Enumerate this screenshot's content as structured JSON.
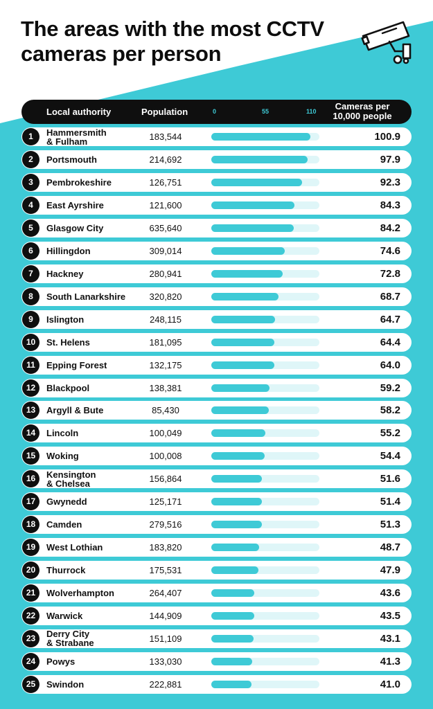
{
  "title": {
    "line1": "The areas with the most CCTV",
    "line2": "cameras per person"
  },
  "colors": {
    "accent": "#3ecad6",
    "track": "#dff6f8",
    "dark": "#0f0f0f"
  },
  "header": {
    "authority": "Local authority",
    "population": "Population",
    "metric_line1": "Cameras per",
    "metric_line2": "10,000 people",
    "ticks": [
      "0",
      "55",
      "110"
    ]
  },
  "chart_data": {
    "type": "bar",
    "xlim": [
      0,
      110
    ],
    "columns": [
      "Local authority",
      "Population",
      "Cameras per 10,000 people"
    ],
    "rows": [
      {
        "rank": "1",
        "name": [
          "Hammersmith",
          "& Fulham"
        ],
        "population": "183,544",
        "value": 100.9,
        "label": "100.9"
      },
      {
        "rank": "2",
        "name": [
          "Portsmouth"
        ],
        "population": "214,692",
        "value": 97.9,
        "label": "97.9"
      },
      {
        "rank": "3",
        "name": [
          "Pembrokeshire"
        ],
        "population": "126,751",
        "value": 92.3,
        "label": "92.3"
      },
      {
        "rank": "4",
        "name": [
          "East Ayrshire"
        ],
        "population": "121,600",
        "value": 84.3,
        "label": "84.3"
      },
      {
        "rank": "5",
        "name": [
          "Glasgow City"
        ],
        "population": "635,640",
        "value": 84.2,
        "label": "84.2"
      },
      {
        "rank": "6",
        "name": [
          "Hillingdon"
        ],
        "population": "309,014",
        "value": 74.6,
        "label": "74.6"
      },
      {
        "rank": "7",
        "name": [
          "Hackney"
        ],
        "population": "280,941",
        "value": 72.8,
        "label": "72.8"
      },
      {
        "rank": "8",
        "name": [
          "South Lanarkshire"
        ],
        "population": "320,820",
        "value": 68.7,
        "label": "68.7"
      },
      {
        "rank": "9",
        "name": [
          "Islington"
        ],
        "population": "248,115",
        "value": 64.7,
        "label": "64.7"
      },
      {
        "rank": "10",
        "name": [
          "St. Helens"
        ],
        "population": "181,095",
        "value": 64.4,
        "label": "64.4"
      },
      {
        "rank": "11",
        "name": [
          "Epping Forest"
        ],
        "population": "132,175",
        "value": 64.0,
        "label": "64.0"
      },
      {
        "rank": "12",
        "name": [
          "Blackpool"
        ],
        "population": "138,381",
        "value": 59.2,
        "label": "59.2"
      },
      {
        "rank": "13",
        "name": [
          "Argyll & Bute"
        ],
        "population": "85,430",
        "value": 58.2,
        "label": "58.2"
      },
      {
        "rank": "14",
        "name": [
          "Lincoln"
        ],
        "population": "100,049",
        "value": 55.2,
        "label": "55.2"
      },
      {
        "rank": "15",
        "name": [
          "Woking"
        ],
        "population": "100,008",
        "value": 54.4,
        "label": "54.4"
      },
      {
        "rank": "16",
        "name": [
          "Kensington",
          "& Chelsea"
        ],
        "population": "156,864",
        "value": 51.6,
        "label": "51.6"
      },
      {
        "rank": "17",
        "name": [
          "Gwynedd"
        ],
        "population": "125,171",
        "value": 51.4,
        "label": "51.4"
      },
      {
        "rank": "18",
        "name": [
          "Camden"
        ],
        "population": "279,516",
        "value": 51.3,
        "label": "51.3"
      },
      {
        "rank": "19",
        "name": [
          "West Lothian"
        ],
        "population": "183,820",
        "value": 48.7,
        "label": "48.7"
      },
      {
        "rank": "20",
        "name": [
          "Thurrock"
        ],
        "population": "175,531",
        "value": 47.9,
        "label": "47.9"
      },
      {
        "rank": "21",
        "name": [
          "Wolverhampton"
        ],
        "population": "264,407",
        "value": 43.6,
        "label": "43.6"
      },
      {
        "rank": "22",
        "name": [
          "Warwick"
        ],
        "population": "144,909",
        "value": 43.5,
        "label": "43.5"
      },
      {
        "rank": "23",
        "name": [
          "Derry City",
          "& Strabane"
        ],
        "population": "151,109",
        "value": 43.1,
        "label": "43.1"
      },
      {
        "rank": "24",
        "name": [
          "Powys"
        ],
        "population": "133,030",
        "value": 41.3,
        "label": "41.3"
      },
      {
        "rank": "25",
        "name": [
          "Swindon"
        ],
        "population": "222,881",
        "value": 41.0,
        "label": "41.0"
      }
    ]
  }
}
